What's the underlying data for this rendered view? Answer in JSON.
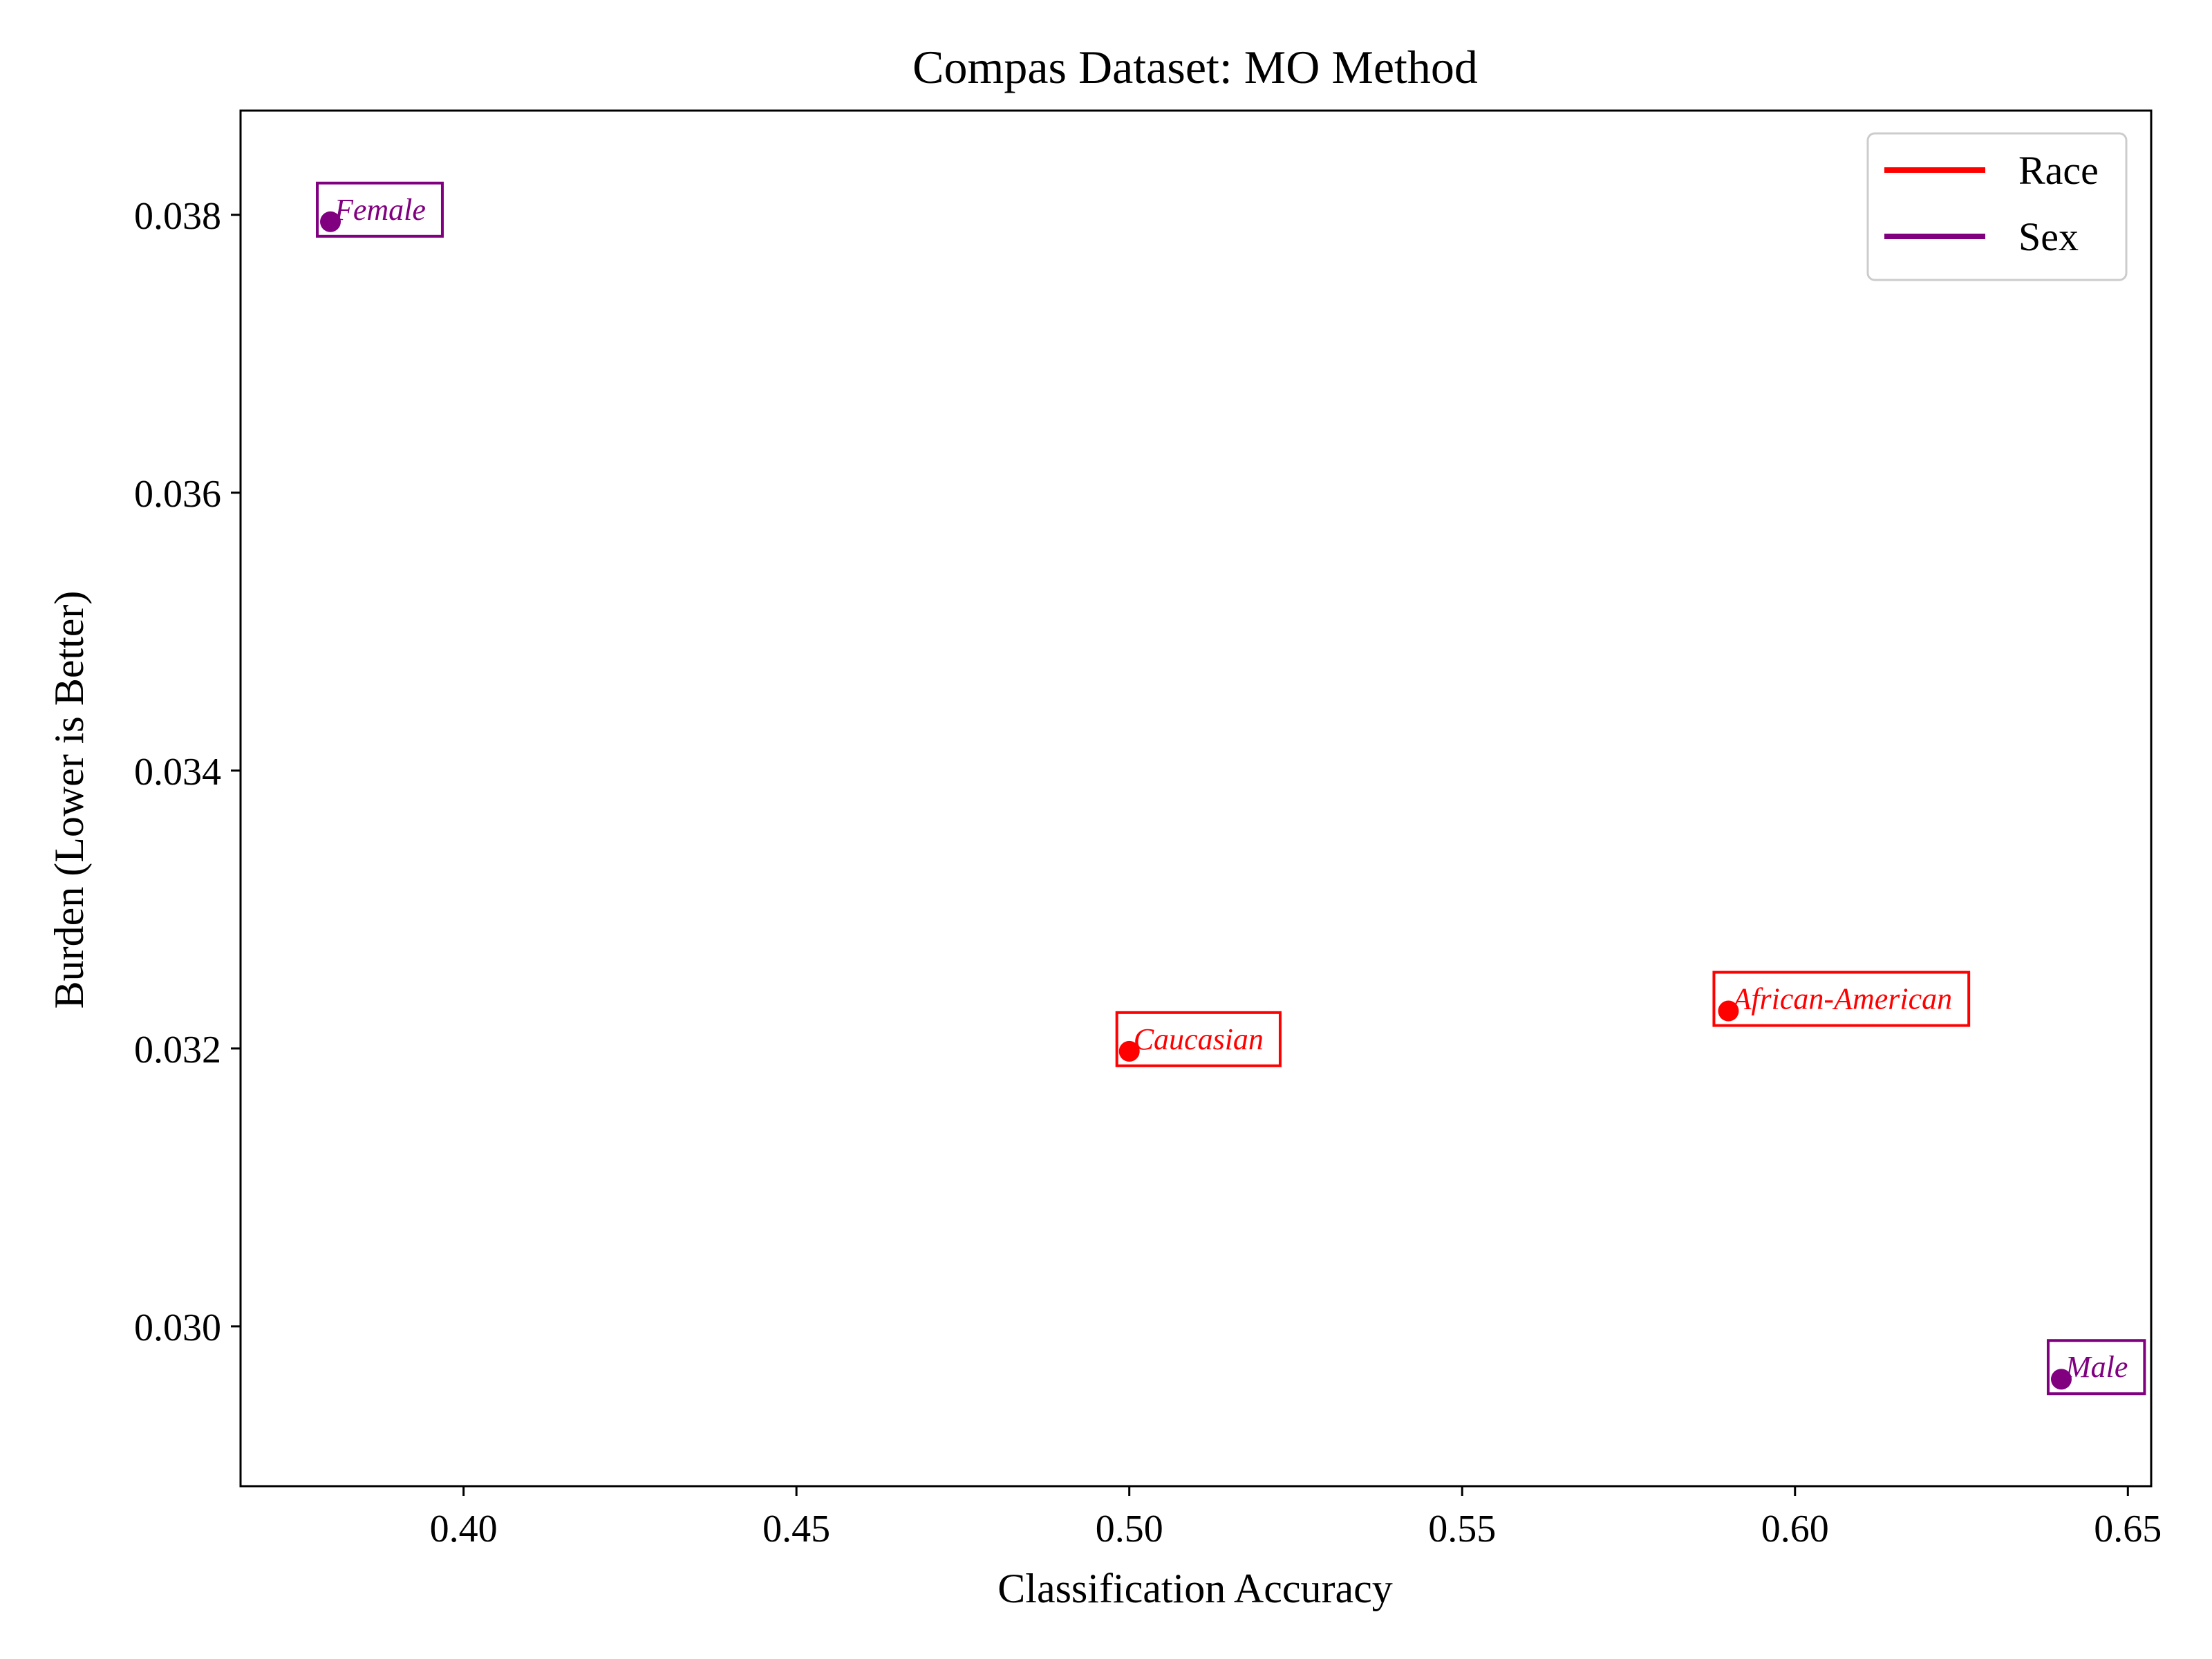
{
  "chart_data": {
    "type": "scatter",
    "title": "Compas Dataset: MO Method",
    "xlabel": "Classification Accuracy",
    "ylabel": "Burden (Lower is Better)",
    "xlim": [
      0.3665,
      0.6535
    ],
    "ylim": [
      0.02885,
      0.03875
    ],
    "xticks": [
      0.4,
      0.45,
      0.5,
      0.55,
      0.6,
      0.65
    ],
    "xtick_labels": [
      "0.40",
      "0.45",
      "0.50",
      "0.55",
      "0.60",
      "0.65"
    ],
    "yticks": [
      0.03,
      0.032,
      0.034,
      0.036,
      0.038
    ],
    "ytick_labels": [
      "0.030",
      "0.032",
      "0.034",
      "0.036",
      "0.038"
    ],
    "grid": false,
    "legend_position": "top-right",
    "series": [
      {
        "name": "Race",
        "color": "#ff0000",
        "points": [
          {
            "label": "Caucasian",
            "x": 0.5,
            "y": 0.03198
          },
          {
            "label": "African-American",
            "x": 0.59,
            "y": 0.03227
          }
        ]
      },
      {
        "name": "Sex",
        "color": "#800080",
        "points": [
          {
            "label": "Female",
            "x": 0.38,
            "y": 0.03795
          },
          {
            "label": "Male",
            "x": 0.64,
            "y": 0.02962
          }
        ]
      }
    ]
  }
}
